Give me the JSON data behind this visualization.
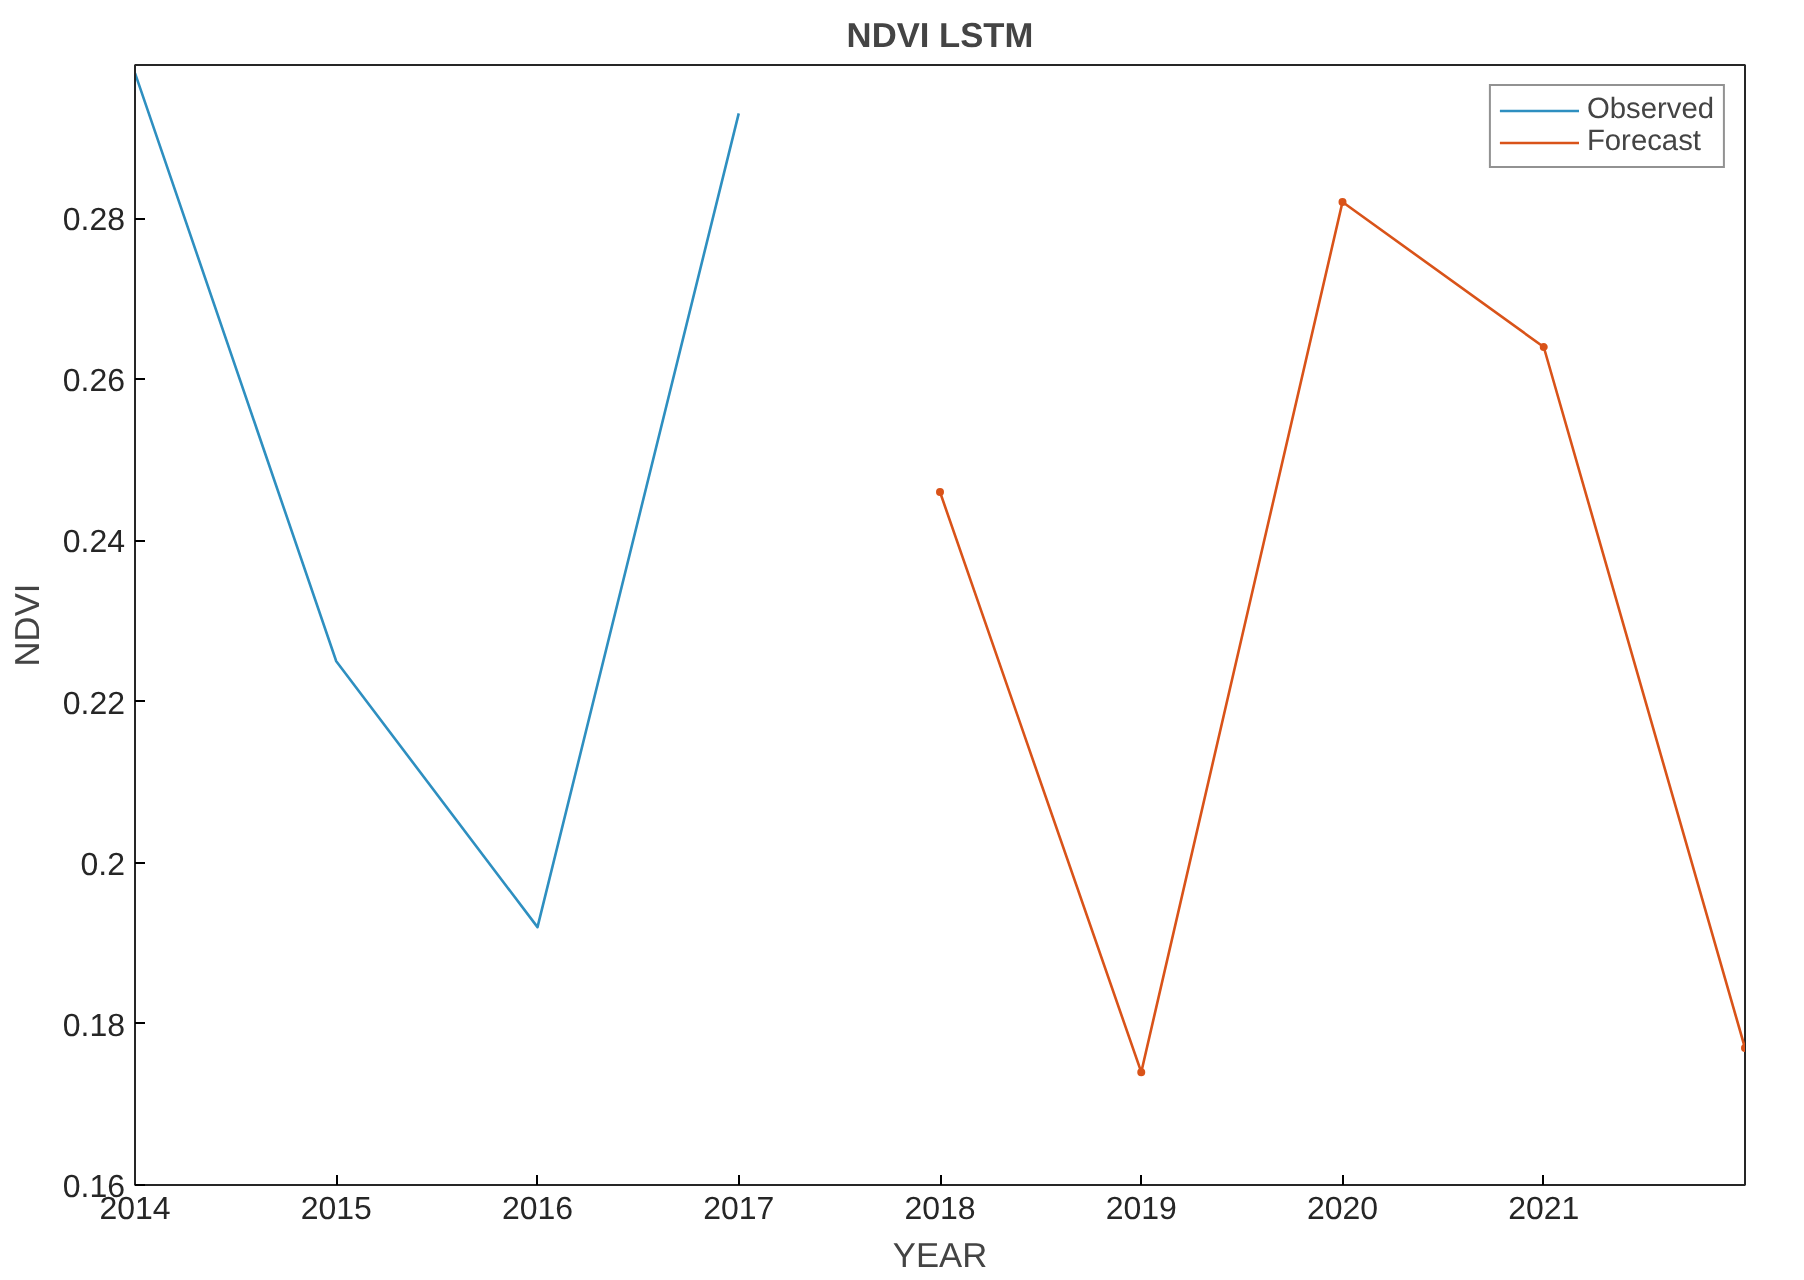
{
  "chart_data": {
    "type": "line",
    "title": "NDVI LSTM",
    "xlabel": "YEAR",
    "ylabel": "NDVI",
    "x": [
      2014,
      2015,
      2016,
      2017
    ],
    "series": [
      {
        "name": "Observed",
        "color": "#2e8fc0",
        "values": [
          0.298,
          0.225,
          0.192,
          0.293
        ],
        "marker": "none"
      },
      {
        "name": "Forecast",
        "color": "#d95319",
        "x": [
          2018,
          2019,
          2020,
          2021,
          2022
        ],
        "values": [
          0.246,
          0.174,
          0.282,
          0.264,
          0.177
        ],
        "marker": "circle"
      }
    ],
    "xlim": [
      2014,
      2022
    ],
    "xticks": [
      2014,
      2015,
      2016,
      2017,
      2018,
      2019,
      2020,
      2021
    ],
    "ylim": [
      0.16,
      0.299
    ],
    "yticks": [
      0.16,
      0.18,
      {
        "value": 0.2,
        "label": "0.2"
      },
      0.22,
      0.24,
      0.26,
      0.28
    ],
    "grid": false,
    "legend": "top right",
    "line_style": "solid"
  }
}
